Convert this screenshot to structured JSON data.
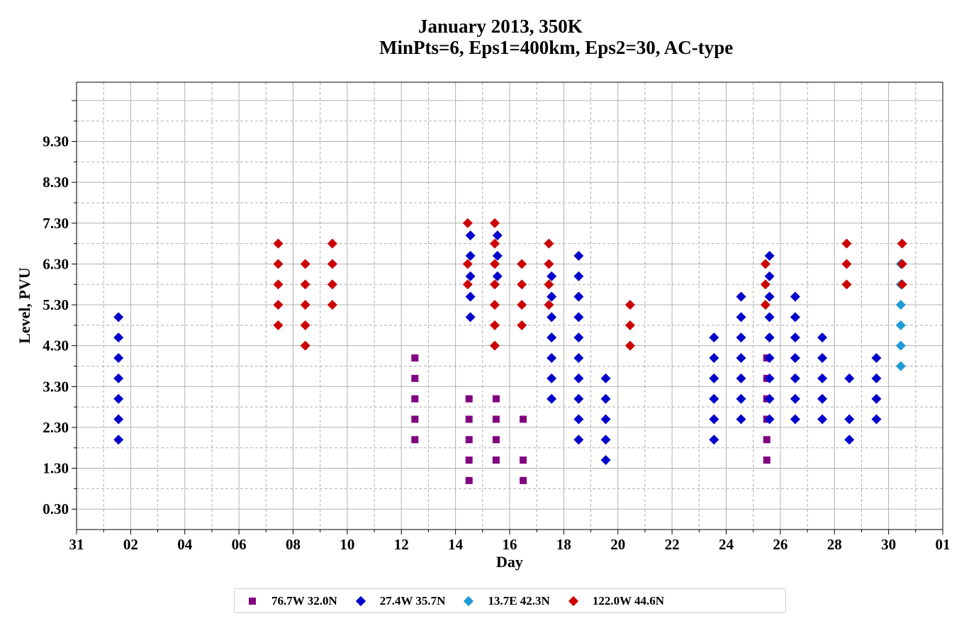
{
  "chart_data": {
    "type": "scatter",
    "title": "January 2013, 350K",
    "subtitle": "MinPts=6, Eps1=400km, Eps2=30, AC-type",
    "xlabel": "Day",
    "ylabel": "Level, PVU",
    "x_ticks": [
      "31",
      "02",
      "04",
      "06",
      "08",
      "10",
      "12",
      "14",
      "16",
      "18",
      "20",
      "22",
      "24",
      "26",
      "28",
      "30",
      "01"
    ],
    "xlim": [
      0,
      32.0
    ],
    "y_ticks": [
      "0.30",
      "1.30",
      "2.30",
      "3.30",
      "4.30",
      "5.30",
      "6.30",
      "7.30",
      "8.30",
      "9.30"
    ],
    "ylim": [
      -0.2,
      10.75
    ],
    "grid": true,
    "legend_position": "bottom-center",
    "series": [
      {
        "name": "76.7W 32.0N",
        "marker": "square",
        "color": "#800080",
        "points": [
          [
            12.5,
            2.0
          ],
          [
            12.5,
            2.5
          ],
          [
            12.5,
            3.0
          ],
          [
            12.5,
            3.5
          ],
          [
            12.5,
            4.0
          ],
          [
            14.5,
            1.0
          ],
          [
            14.5,
            1.5
          ],
          [
            14.5,
            2.0
          ],
          [
            14.5,
            2.5
          ],
          [
            14.5,
            3.0
          ],
          [
            15.5,
            1.5
          ],
          [
            15.5,
            2.0
          ],
          [
            15.5,
            2.5
          ],
          [
            15.5,
            3.0
          ],
          [
            16.5,
            1.0
          ],
          [
            16.5,
            1.5
          ],
          [
            16.5,
            2.5
          ],
          [
            25.5,
            1.5
          ],
          [
            25.5,
            2.0
          ],
          [
            25.5,
            2.5
          ],
          [
            25.5,
            3.0
          ],
          [
            25.5,
            3.5
          ],
          [
            25.5,
            4.0
          ]
        ]
      },
      {
        "name": "27.4W 35.7N",
        "marker": "diamond",
        "color": "#0000cc",
        "points": [
          [
            1.55,
            2.0
          ],
          [
            1.55,
            2.5
          ],
          [
            1.55,
            3.0
          ],
          [
            1.55,
            3.5
          ],
          [
            1.55,
            4.0
          ],
          [
            1.55,
            4.5
          ],
          [
            1.55,
            5.0
          ],
          [
            14.55,
            5.0
          ],
          [
            14.55,
            5.5
          ],
          [
            14.55,
            6.0
          ],
          [
            14.55,
            6.5
          ],
          [
            14.55,
            7.0
          ],
          [
            15.55,
            6.0
          ],
          [
            15.55,
            6.5
          ],
          [
            15.55,
            7.0
          ],
          [
            17.55,
            3.0
          ],
          [
            17.55,
            3.5
          ],
          [
            17.55,
            4.0
          ],
          [
            17.55,
            4.5
          ],
          [
            17.55,
            5.0
          ],
          [
            17.55,
            5.5
          ],
          [
            17.55,
            6.0
          ],
          [
            18.55,
            2.0
          ],
          [
            18.55,
            2.5
          ],
          [
            18.55,
            3.0
          ],
          [
            18.55,
            3.5
          ],
          [
            18.55,
            4.0
          ],
          [
            18.55,
            4.5
          ],
          [
            18.55,
            5.0
          ],
          [
            18.55,
            5.5
          ],
          [
            18.55,
            6.0
          ],
          [
            18.55,
            6.5
          ],
          [
            19.55,
            1.5
          ],
          [
            19.55,
            2.0
          ],
          [
            19.55,
            2.5
          ],
          [
            19.55,
            3.0
          ],
          [
            19.55,
            3.5
          ],
          [
            23.55,
            2.0
          ],
          [
            23.55,
            2.5
          ],
          [
            23.55,
            3.0
          ],
          [
            23.55,
            3.5
          ],
          [
            23.55,
            4.0
          ],
          [
            23.55,
            4.5
          ],
          [
            24.55,
            2.5
          ],
          [
            24.55,
            3.0
          ],
          [
            24.55,
            3.5
          ],
          [
            24.55,
            4.0
          ],
          [
            24.55,
            4.5
          ],
          [
            24.55,
            5.0
          ],
          [
            24.55,
            5.5
          ],
          [
            25.6,
            2.5
          ],
          [
            25.6,
            3.0
          ],
          [
            25.6,
            3.5
          ],
          [
            25.6,
            4.0
          ],
          [
            25.6,
            4.5
          ],
          [
            25.6,
            5.0
          ],
          [
            25.6,
            5.5
          ],
          [
            25.6,
            6.0
          ],
          [
            25.6,
            6.5
          ],
          [
            26.55,
            2.5
          ],
          [
            26.55,
            3.0
          ],
          [
            26.55,
            3.5
          ],
          [
            26.55,
            4.0
          ],
          [
            26.55,
            4.5
          ],
          [
            26.55,
            5.0
          ],
          [
            26.55,
            5.5
          ],
          [
            27.55,
            2.5
          ],
          [
            27.55,
            3.0
          ],
          [
            27.55,
            3.5
          ],
          [
            27.55,
            4.0
          ],
          [
            27.55,
            4.5
          ],
          [
            28.55,
            2.0
          ],
          [
            28.55,
            2.5
          ],
          [
            28.55,
            3.5
          ],
          [
            29.55,
            2.5
          ],
          [
            29.55,
            3.0
          ],
          [
            29.55,
            3.5
          ],
          [
            29.55,
            4.0
          ]
        ]
      },
      {
        "name": "13.7E 42.3N",
        "marker": "diamond",
        "color": "#1f9bd6",
        "points": [
          [
            30.45,
            3.8
          ],
          [
            30.45,
            4.3
          ],
          [
            30.45,
            4.8
          ],
          [
            30.45,
            5.3
          ],
          [
            30.45,
            5.8
          ],
          [
            30.45,
            6.3
          ]
        ]
      },
      {
        "name": "122.0W 44.6N",
        "marker": "diamond",
        "color": "#cc0000",
        "points": [
          [
            7.45,
            4.8
          ],
          [
            7.45,
            5.3
          ],
          [
            7.45,
            5.8
          ],
          [
            7.45,
            6.3
          ],
          [
            7.45,
            6.8
          ],
          [
            8.45,
            4.3
          ],
          [
            8.45,
            4.8
          ],
          [
            8.45,
            5.3
          ],
          [
            8.45,
            5.8
          ],
          [
            8.45,
            6.3
          ],
          [
            9.45,
            5.3
          ],
          [
            9.45,
            5.8
          ],
          [
            9.45,
            6.3
          ],
          [
            9.45,
            6.8
          ],
          [
            14.45,
            5.8
          ],
          [
            14.45,
            6.3
          ],
          [
            14.45,
            7.3
          ],
          [
            15.45,
            4.3
          ],
          [
            15.45,
            4.8
          ],
          [
            15.45,
            5.3
          ],
          [
            15.45,
            5.8
          ],
          [
            15.45,
            6.3
          ],
          [
            15.45,
            6.8
          ],
          [
            15.45,
            7.3
          ],
          [
            16.45,
            4.8
          ],
          [
            16.45,
            5.3
          ],
          [
            16.45,
            5.8
          ],
          [
            16.45,
            6.3
          ],
          [
            17.45,
            5.3
          ],
          [
            17.45,
            5.8
          ],
          [
            17.45,
            6.3
          ],
          [
            17.45,
            6.8
          ],
          [
            20.45,
            4.3
          ],
          [
            20.45,
            4.8
          ],
          [
            20.45,
            5.3
          ],
          [
            25.45,
            5.3
          ],
          [
            25.45,
            5.8
          ],
          [
            25.45,
            6.3
          ],
          [
            28.45,
            5.8
          ],
          [
            28.45,
            6.3
          ],
          [
            28.45,
            6.8
          ],
          [
            30.5,
            5.8
          ],
          [
            30.5,
            6.3
          ],
          [
            30.5,
            6.8
          ]
        ]
      }
    ]
  }
}
